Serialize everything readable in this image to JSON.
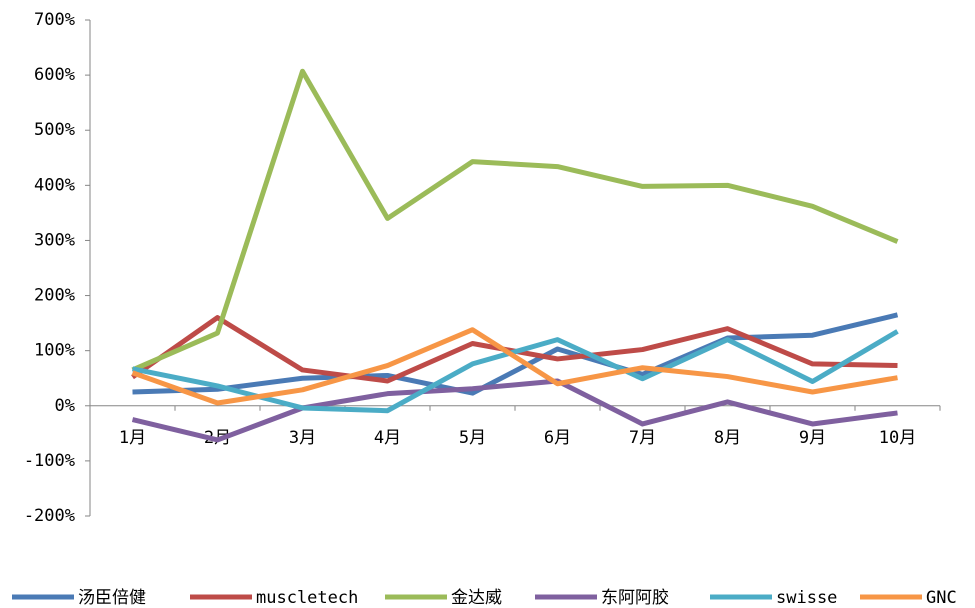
{
  "chart_data": {
    "type": "line",
    "categories": [
      "1月",
      "2月",
      "3月",
      "4月",
      "5月",
      "6月",
      "7月",
      "8月",
      "9月",
      "10月"
    ],
    "series": [
      {
        "name": "汤臣倍健",
        "color": "#4a7ab5",
        "values": [
          25,
          30,
          50,
          55,
          23,
          103,
          57,
          123,
          128,
          165
        ]
      },
      {
        "name": "muscletech",
        "color": "#be4b48",
        "values": [
          52,
          160,
          65,
          45,
          113,
          85,
          102,
          140,
          76,
          73
        ]
      },
      {
        "name": "金达威",
        "color": "#9bbb59",
        "values": [
          65,
          132,
          607,
          340,
          443,
          434,
          398,
          400,
          362,
          298
        ]
      },
      {
        "name": "东阿阿胶",
        "color": "#7f609f",
        "values": [
          -25,
          -62,
          -4,
          22,
          31,
          45,
          -33,
          7,
          -33,
          -13
        ]
      },
      {
        "name": "swisse",
        "color": "#4bacc6",
        "values": [
          67,
          36,
          -4,
          -9,
          76,
          120,
          49,
          120,
          44,
          135
        ]
      },
      {
        "name": "GNC",
        "color": "#f79646",
        "values": [
          60,
          5,
          29,
          73,
          138,
          40,
          69,
          53,
          25,
          51
        ]
      }
    ],
    "ylim": [
      -200,
      700
    ],
    "yticks": [
      {
        "value": -200,
        "label": "-200%"
      },
      {
        "value": -100,
        "label": "-100%"
      },
      {
        "value": 0,
        "label": "0%"
      },
      {
        "value": 100,
        "label": "100%"
      },
      {
        "value": 200,
        "label": "200%"
      },
      {
        "value": 300,
        "label": "300%"
      },
      {
        "value": 400,
        "label": "400%"
      },
      {
        "value": 500,
        "label": "500%"
      },
      {
        "value": 600,
        "label": "600%"
      },
      {
        "value": 700,
        "label": "700%"
      }
    ],
    "legend": "bottom"
  }
}
